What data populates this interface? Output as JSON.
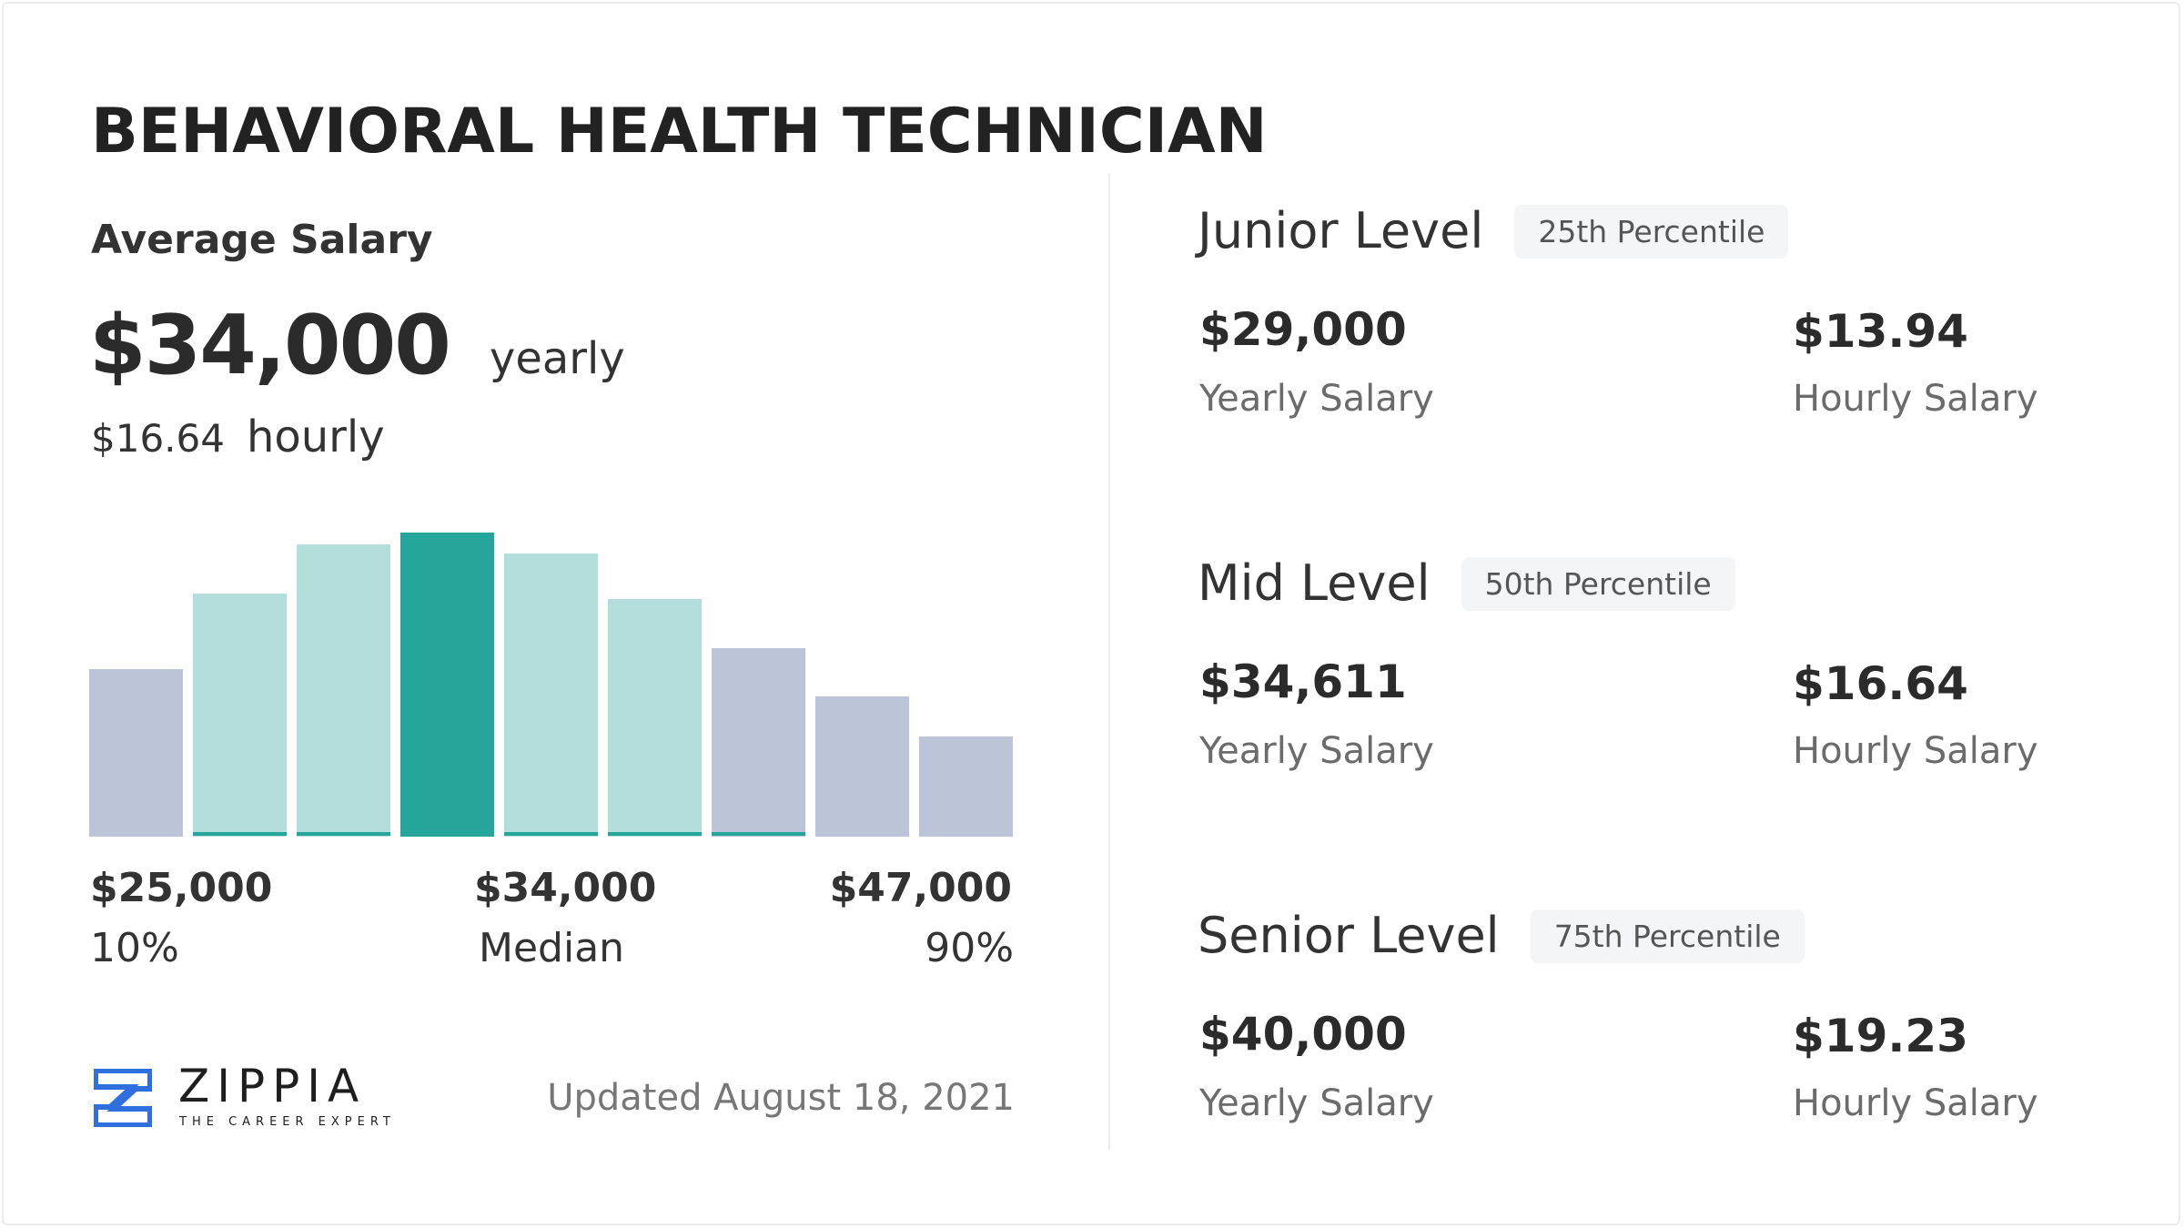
{
  "title": "BEHAVIORAL HEALTH TECHNICIAN",
  "average": {
    "label": "Average Salary",
    "yearly_value": "$34,000",
    "yearly_label": "yearly",
    "hourly_value": "$16.64",
    "hourly_label": "hourly"
  },
  "chart_data": {
    "type": "bar",
    "title": "",
    "values_relative_pct": [
      55,
      80,
      96,
      100,
      93,
      78,
      62,
      46,
      33
    ],
    "highlight_index": 3,
    "bar_colors": [
      "#bcc5d8",
      "#b4dedb",
      "#b4dedb",
      "#26a69a",
      "#b4dedb",
      "#b4dedb",
      "#bcc5d8",
      "#bcc5d8",
      "#bcc5d8"
    ],
    "underline_indices": [
      1,
      2,
      4,
      5,
      6
    ],
    "underline_color": "#26a69a",
    "x_labels": [
      {
        "value": "$25,000",
        "percentile": "10%"
      },
      {
        "value": "$34,000",
        "percentile": "Median"
      },
      {
        "value": "$47,000",
        "percentile": "90%"
      }
    ],
    "grid": false
  },
  "footer": {
    "logo_name": "ZIPPIA",
    "logo_tagline": "THE CAREER EXPERT",
    "logo_color": "#2f6fde",
    "updated": "Updated August 18, 2021"
  },
  "levels": [
    {
      "name": "Junior Level",
      "percentile": "25th Percentile",
      "yearly": "$29,000",
      "yearly_label": "Yearly Salary",
      "hourly": "$13.94",
      "hourly_label": "Hourly Salary"
    },
    {
      "name": "Mid Level",
      "percentile": "50th Percentile",
      "yearly": "$34,611",
      "yearly_label": "Yearly Salary",
      "hourly": "$16.64",
      "hourly_label": "Hourly Salary"
    },
    {
      "name": "Senior Level",
      "percentile": "75th Percentile",
      "yearly": "$40,000",
      "yearly_label": "Yearly Salary",
      "hourly": "$19.23",
      "hourly_label": "Hourly Salary"
    }
  ]
}
